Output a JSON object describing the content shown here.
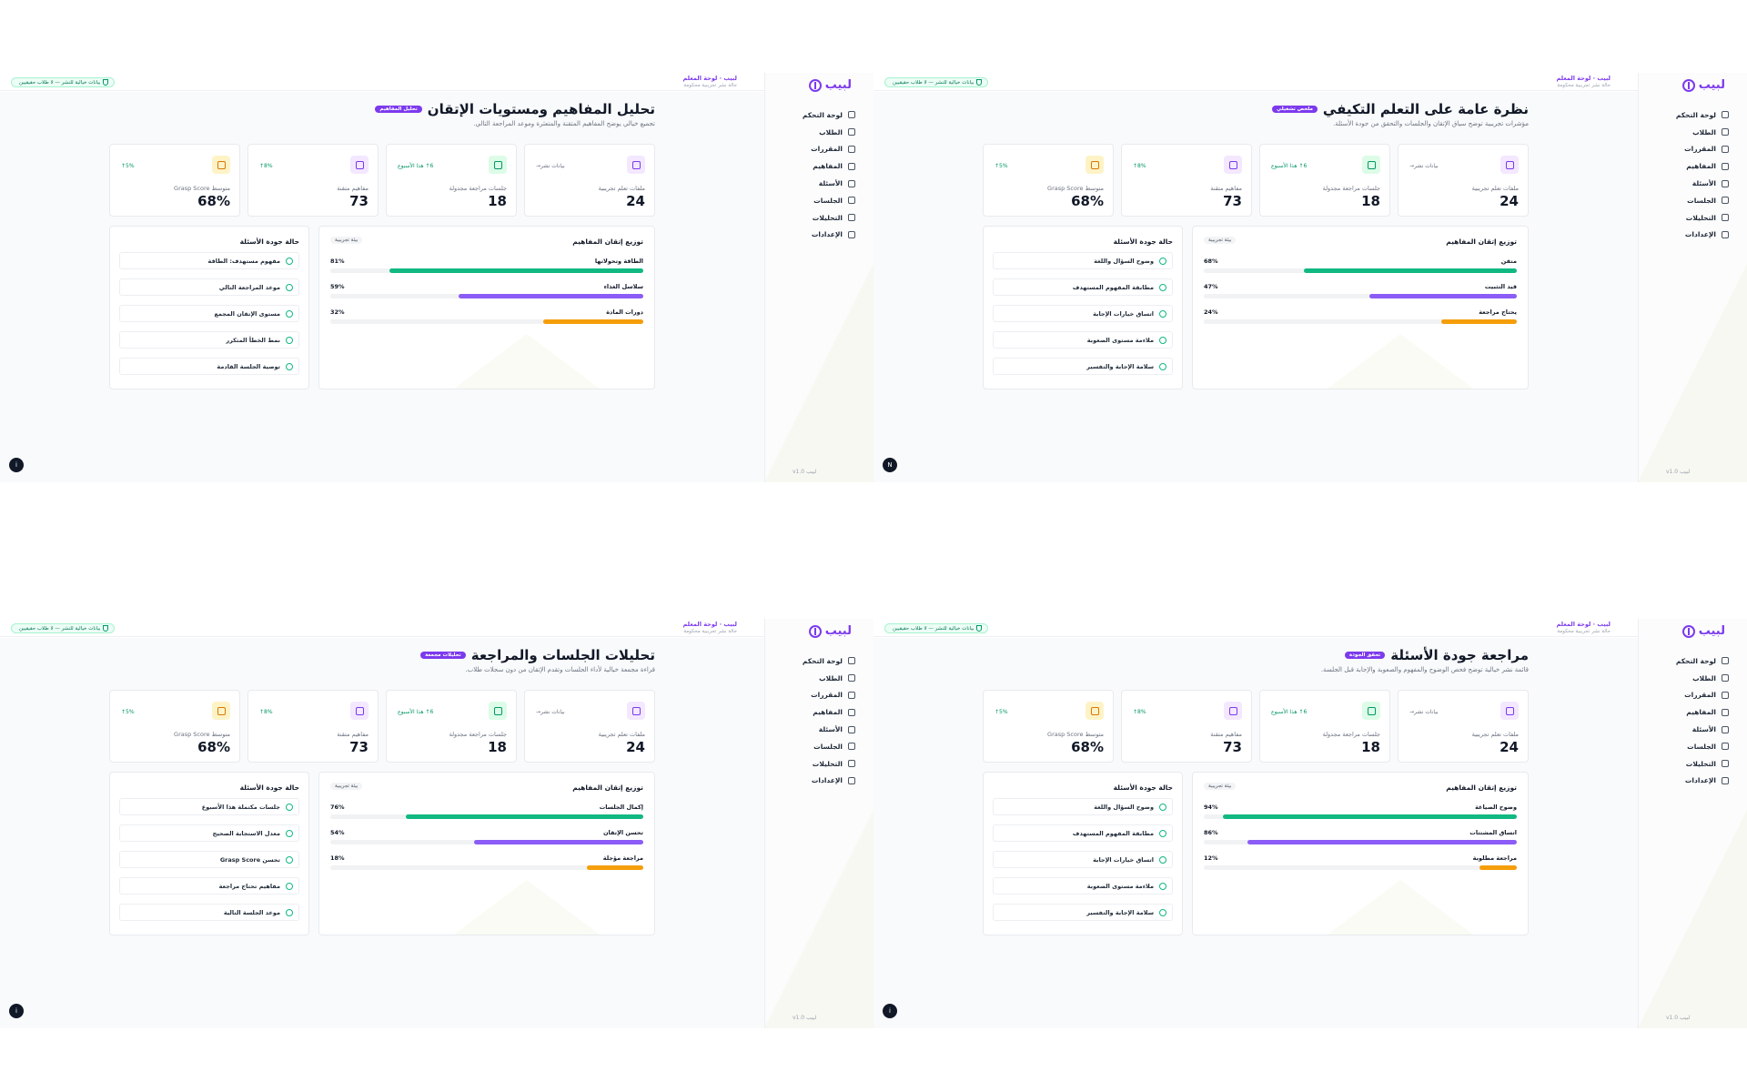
{
  "app": {
    "brand": "لبيب",
    "breadcrumb": "لبيب · لوحة المعلم",
    "breadcrumb_sub": "حالة نشر تجريبية محكومة",
    "banner": "بيانات خيالية للنشر — لا طلاب حقيقيين",
    "version": "لبيب v1.0"
  },
  "nav": [
    {
      "label": "لوحة التحكم",
      "icon": "grid-icon"
    },
    {
      "label": "الطلاب",
      "icon": "users-icon"
    },
    {
      "label": "المقررات",
      "icon": "book-icon"
    },
    {
      "label": "المفاهيم",
      "icon": "concept-icon"
    },
    {
      "label": "الأسئلة",
      "icon": "chat-icon"
    },
    {
      "label": "الجلسات",
      "icon": "calendar-icon"
    },
    {
      "label": "التحليلات",
      "icon": "chart-icon"
    },
    {
      "label": "الإعدادات",
      "icon": "gear-icon"
    }
  ],
  "stats": [
    {
      "label": "ملفات تعلم تجريبية",
      "value": "24",
      "trend": "بيانات نشر→",
      "icon": "users-icon",
      "color": "#7c3aed",
      "bg": "#f3e8ff",
      "trend_color": "#6b7280"
    },
    {
      "label": "جلسات مراجعة مجدولة",
      "value": "18",
      "trend": "6↑ هذا الأسبوع",
      "icon": "calendar-icon",
      "color": "#059669",
      "bg": "#dcfce7",
      "trend_color": "#059669"
    },
    {
      "label": "مفاهيم متقنة",
      "value": "73",
      "trend": "8%↑",
      "icon": "concept-icon",
      "color": "#7c3aed",
      "bg": "#f3e8ff",
      "trend_color": "#059669"
    },
    {
      "label": "متوسط Grasp Score",
      "value": "68%",
      "trend": "5%↑",
      "icon": "chart-icon",
      "color": "#d97706",
      "bg": "#fef3c7",
      "trend_color": "#059669"
    }
  ],
  "labels": {
    "mastery_title": "توزيع إتقان المفاهيم",
    "mastery_tag": "بيئة تجريبية",
    "quality_title": "حالة جودة الأسئلة"
  },
  "bar_colors": [
    "#10b981",
    "#8b5cf6",
    "#f59e0b"
  ],
  "screens": [
    {
      "title": "نظرة عامة على التعلم التكيفي",
      "pill": "ملخص تشغيلي",
      "subtitle": "مؤشرات تجريبية توضح سياق الإتقان والجلسات والتحقق من جودة الأسئلة.",
      "corner": "N",
      "bars": [
        {
          "label": "متقن",
          "pct": 68
        },
        {
          "label": "قيد التثبيت",
          "pct": 47
        },
        {
          "label": "يحتاج مراجعة",
          "pct": 24
        }
      ],
      "quality": [
        "وضوح السؤال واللغة",
        "مطابقة المفهوم المستهدف",
        "اتساق خيارات الإجابة",
        "ملاءمة مستوى الصعوبة",
        "سلامة الإجابة والتفسير"
      ]
    },
    {
      "title": "تحليل المفاهيم ومستويات الإتقان",
      "pill": "تحليل المفاهيم",
      "subtitle": "تجميع خيالي يوضح المفاهيم المتقنة والمتعثرة وموعد المراجعة التالي.",
      "corner": "i",
      "bars": [
        {
          "label": "الطاقة وتحولاتها",
          "pct": 81
        },
        {
          "label": "سلاسل الغذاء",
          "pct": 59
        },
        {
          "label": "دورات المادة",
          "pct": 32
        }
      ],
      "quality": [
        "مفهوم مستهدف: الطاقة",
        "موعد المراجعة التالي",
        "مستوى الإتقان المجمع",
        "نمط الخطأ المتكرر",
        "توصية الجلسة القادمة"
      ]
    },
    {
      "title": "مراجعة جودة الأسئلة",
      "pill": "تحقق الجودة",
      "subtitle": "قائمة نشر خيالية توضح فحص الوضوح والمفهوم والصعوبة والإجابة قبل الجلسة.",
      "corner": "i",
      "bars": [
        {
          "label": "وضوح الصياغة",
          "pct": 94
        },
        {
          "label": "اتساق المشتتات",
          "pct": 86
        },
        {
          "label": "مراجعة مطلوبة",
          "pct": 12
        }
      ],
      "quality": [
        "وضوح السؤال واللغة",
        "مطابقة المفهوم المستهدف",
        "اتساق خيارات الإجابة",
        "ملاءمة مستوى الصعوبة",
        "سلامة الإجابة والتفسير"
      ]
    },
    {
      "title": "تحليلات الجلسات والمراجعة",
      "pill": "تحليلات مجمعة",
      "subtitle": "قراءة مجمعة خيالية لأداء الجلسات وتقدم الإتقان من دون سجلات طلاب.",
      "corner": "i",
      "bars": [
        {
          "label": "إكمال الجلسات",
          "pct": 76
        },
        {
          "label": "تحسن الإتقان",
          "pct": 54
        },
        {
          "label": "مراجعة مؤجلة",
          "pct": 18
        }
      ],
      "quality": [
        "جلسات مكتملة هذا الأسبوع",
        "معدل الاستجابة الصحيح",
        "تحسن Grasp Score",
        "مفاهيم تحتاج مراجعة",
        "موعد الجلسة التالية"
      ]
    }
  ]
}
